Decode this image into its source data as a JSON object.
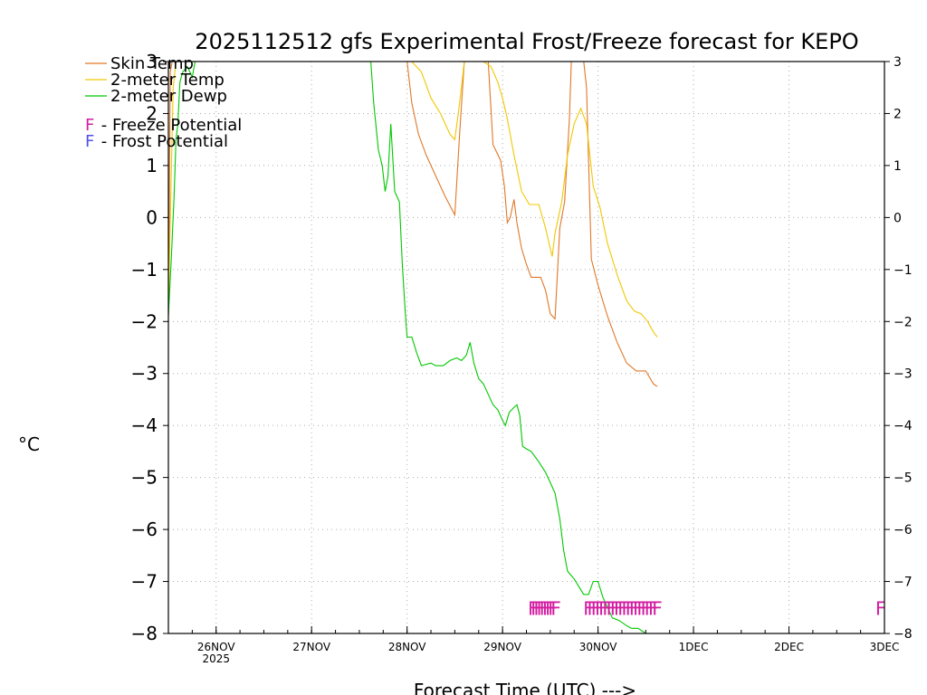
{
  "chart_data": {
    "type": "line",
    "title": "2025112512 gfs Experimental Frost/Freeze forecast for KEPO",
    "xlabel": "Forecast Time (UTC) --->",
    "ylabel": "°C",
    "ylim": [
      -8,
      3
    ],
    "yticks": [
      3,
      2,
      1,
      0,
      -1,
      -2,
      -3,
      -4,
      -5,
      -6,
      -7,
      -8
    ],
    "ytick_labels": [
      "3",
      "2",
      "1",
      "0",
      "−1",
      "−2",
      "−3",
      "−4",
      "−5",
      "−6",
      "−7",
      "−8"
    ],
    "xlim_days": [
      -0.5,
      7.0
    ],
    "xticks": [
      {
        "label": "26NOV",
        "sub": "2025",
        "day": 0
      },
      {
        "label": "27NOV",
        "sub": "",
        "day": 1
      },
      {
        "label": "28NOV",
        "sub": "",
        "day": 2
      },
      {
        "label": "29NOV",
        "sub": "",
        "day": 3
      },
      {
        "label": "30NOV",
        "sub": "",
        "day": 4
      },
      {
        "label": "1DEC",
        "sub": "",
        "day": 5
      },
      {
        "label": "2DEC",
        "sub": "",
        "day": 6
      },
      {
        "label": "3DEC",
        "sub": "",
        "day": 7
      }
    ],
    "grid": true,
    "legend": {
      "position": "top-left",
      "series": [
        {
          "name": "Skin Temp",
          "color": "#e07828"
        },
        {
          "name": "2-meter Temp",
          "color": "#f0c800"
        },
        {
          "name": "2-meter Dewp",
          "color": "#00c800"
        }
      ],
      "markers": [
        {
          "symbol": "F",
          "text": " - Freeze Potential",
          "color": "#d21ca0"
        },
        {
          "symbol": "F",
          "text": " - Frost Potential",
          "color": "#5050e6"
        }
      ]
    },
    "series": [
      {
        "name": "Skin Temp",
        "color": "#e07828",
        "points": [
          [
            -0.5,
            -1.9
          ],
          [
            -0.48,
            2.8
          ],
          [
            -0.46,
            3
          ],
          [
            1.95,
            3
          ],
          [
            2.0,
            3
          ],
          [
            2.05,
            2.2
          ],
          [
            2.12,
            1.6
          ],
          [
            2.2,
            1.2
          ],
          [
            2.3,
            0.8
          ],
          [
            2.4,
            0.4
          ],
          [
            2.5,
            0.05
          ],
          [
            2.55,
            1.6
          ],
          [
            2.6,
            3
          ],
          [
            2.85,
            3
          ],
          [
            2.9,
            1.4
          ],
          [
            2.98,
            1.1
          ],
          [
            3.02,
            0.6
          ],
          [
            3.05,
            -0.1
          ],
          [
            3.08,
            0.0
          ],
          [
            3.12,
            0.35
          ],
          [
            3.15,
            -0.1
          ],
          [
            3.2,
            -0.6
          ],
          [
            3.25,
            -0.9
          ],
          [
            3.3,
            -1.15
          ],
          [
            3.4,
            -1.15
          ],
          [
            3.45,
            -1.4
          ],
          [
            3.5,
            -1.85
          ],
          [
            3.55,
            -1.95
          ],
          [
            3.6,
            -0.2
          ],
          [
            3.65,
            0.3
          ],
          [
            3.7,
            1.9
          ],
          [
            3.72,
            3
          ],
          [
            3.85,
            3
          ],
          [
            3.88,
            2.5
          ],
          [
            3.93,
            -0.8
          ],
          [
            4.0,
            -1.3
          ],
          [
            4.1,
            -1.9
          ],
          [
            4.2,
            -2.4
          ],
          [
            4.3,
            -2.8
          ],
          [
            4.4,
            -2.95
          ],
          [
            4.5,
            -2.95
          ],
          [
            4.58,
            -3.2
          ],
          [
            4.62,
            -3.25
          ]
        ]
      },
      {
        "name": "2-meter Temp",
        "color": "#f0c800",
        "points": [
          [
            -0.5,
            -1.7
          ],
          [
            -0.45,
            2.5
          ],
          [
            -0.42,
            3
          ],
          [
            1.95,
            3
          ],
          [
            2.05,
            3
          ],
          [
            2.15,
            2.8
          ],
          [
            2.25,
            2.3
          ],
          [
            2.35,
            2.0
          ],
          [
            2.45,
            1.6
          ],
          [
            2.5,
            1.5
          ],
          [
            2.55,
            2.2
          ],
          [
            2.6,
            3
          ],
          [
            2.8,
            3
          ],
          [
            2.88,
            2.9
          ],
          [
            2.95,
            2.6
          ],
          [
            3.0,
            2.3
          ],
          [
            3.05,
            1.9
          ],
          [
            3.12,
            1.2
          ],
          [
            3.2,
            0.5
          ],
          [
            3.28,
            0.25
          ],
          [
            3.38,
            0.25
          ],
          [
            3.45,
            -0.2
          ],
          [
            3.5,
            -0.6
          ],
          [
            3.52,
            -0.75
          ],
          [
            3.55,
            -0.3
          ],
          [
            3.62,
            0.3
          ],
          [
            3.68,
            1.2
          ],
          [
            3.75,
            1.8
          ],
          [
            3.82,
            2.1
          ],
          [
            3.88,
            1.8
          ],
          [
            3.95,
            0.6
          ],
          [
            4.02,
            0.2
          ],
          [
            4.1,
            -0.5
          ],
          [
            4.2,
            -1.1
          ],
          [
            4.3,
            -1.6
          ],
          [
            4.38,
            -1.8
          ],
          [
            4.45,
            -1.85
          ],
          [
            4.52,
            -2.0
          ],
          [
            4.58,
            -2.2
          ],
          [
            4.62,
            -2.3
          ]
        ]
      },
      {
        "name": "2-meter Dewp",
        "color": "#00c800",
        "points": [
          [
            -0.5,
            -1.9
          ],
          [
            -0.47,
            -0.8
          ],
          [
            -0.44,
            0.4
          ],
          [
            -0.42,
            1.5
          ],
          [
            -0.4,
            1.8
          ],
          [
            -0.38,
            2.6
          ],
          [
            -0.35,
            2.8
          ],
          [
            -0.3,
            2.9
          ],
          [
            -0.25,
            2.7
          ],
          [
            -0.22,
            3
          ],
          [
            1.62,
            3
          ],
          [
            1.65,
            2.2
          ],
          [
            1.7,
            1.3
          ],
          [
            1.74,
            1.0
          ],
          [
            1.77,
            0.5
          ],
          [
            1.8,
            0.8
          ],
          [
            1.83,
            1.8
          ],
          [
            1.87,
            0.5
          ],
          [
            1.92,
            0.3
          ],
          [
            1.95,
            -0.9
          ],
          [
            1.98,
            -1.8
          ],
          [
            2.0,
            -2.3
          ],
          [
            2.05,
            -2.3
          ],
          [
            2.1,
            -2.6
          ],
          [
            2.15,
            -2.85
          ],
          [
            2.25,
            -2.8
          ],
          [
            2.3,
            -2.85
          ],
          [
            2.38,
            -2.85
          ],
          [
            2.45,
            -2.75
          ],
          [
            2.52,
            -2.7
          ],
          [
            2.57,
            -2.75
          ],
          [
            2.62,
            -2.65
          ],
          [
            2.66,
            -2.4
          ],
          [
            2.7,
            -2.8
          ],
          [
            2.75,
            -3.1
          ],
          [
            2.8,
            -3.2
          ],
          [
            2.85,
            -3.4
          ],
          [
            2.9,
            -3.6
          ],
          [
            2.95,
            -3.7
          ],
          [
            3.0,
            -3.9
          ],
          [
            3.03,
            -4.0
          ],
          [
            3.07,
            -3.75
          ],
          [
            3.12,
            -3.65
          ],
          [
            3.15,
            -3.6
          ],
          [
            3.18,
            -3.8
          ],
          [
            3.21,
            -4.4
          ],
          [
            3.25,
            -4.45
          ],
          [
            3.3,
            -4.5
          ],
          [
            3.38,
            -4.7
          ],
          [
            3.45,
            -4.9
          ],
          [
            3.5,
            -5.1
          ],
          [
            3.55,
            -5.3
          ],
          [
            3.6,
            -5.8
          ],
          [
            3.64,
            -6.4
          ],
          [
            3.68,
            -6.8
          ],
          [
            3.75,
            -6.95
          ],
          [
            3.8,
            -7.1
          ],
          [
            3.85,
            -7.25
          ],
          [
            3.9,
            -7.25
          ],
          [
            3.95,
            -7.0
          ],
          [
            4.0,
            -7.0
          ],
          [
            4.05,
            -7.3
          ],
          [
            4.1,
            -7.5
          ],
          [
            4.15,
            -7.7
          ],
          [
            4.22,
            -7.75
          ],
          [
            4.3,
            -7.85
          ],
          [
            4.35,
            -7.9
          ],
          [
            4.42,
            -7.9
          ],
          [
            4.5,
            -8.0
          ],
          [
            4.55,
            -8.05
          ]
        ]
      }
    ],
    "freeze_markers": [
      {
        "symbol": "F",
        "color": "#d21ca0",
        "y": -7.5,
        "days": [
          3.32,
          3.35,
          3.38,
          3.41,
          3.44,
          3.47,
          3.5,
          3.53,
          3.56,
          3.9,
          3.94,
          3.98,
          4.02,
          4.06,
          4.1,
          4.14,
          4.18,
          4.22,
          4.26,
          4.3,
          4.34,
          4.38,
          4.42,
          4.46,
          4.5,
          4.54,
          4.58,
          4.62,
          6.96
        ]
      }
    ]
  }
}
